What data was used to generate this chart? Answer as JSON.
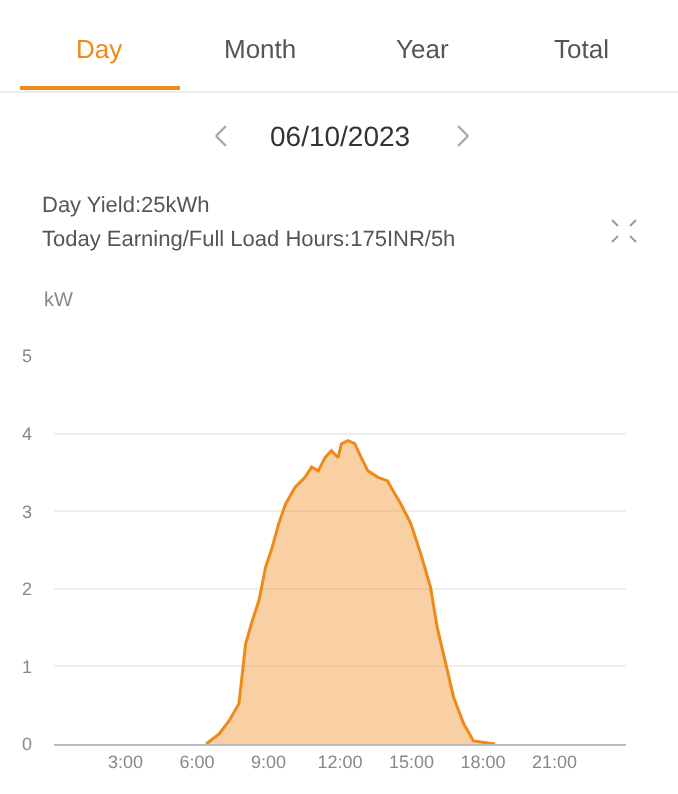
{
  "chart_data": {
    "type": "area",
    "title": "06/10/2023",
    "subtitle": "Day Yield:25kWh",
    "annotations": [
      "Day",
      "Month",
      "Year",
      "Total",
      "Today Earning/Full Load Hours:175INR/5h"
    ],
    "ylabel": "kW",
    "series": [
      {
        "color": "#ee8a1a",
        "x": [
          6.38,
          6.93,
          7.35,
          7.76,
          7.9,
          8.04,
          8.32,
          8.6,
          8.88,
          9.15,
          9.43,
          9.71,
          10.12,
          10.54,
          10.81,
          11.09,
          11.37,
          11.64,
          11.92,
          12.06,
          12.34,
          12.62,
          12.89,
          13.17,
          13.58,
          14.0,
          14.14,
          14.56,
          14.97,
          15.39,
          15.8,
          16.08,
          16.41,
          16.77,
          17.19,
          17.6,
          18.51
        ],
        "values": [
          0,
          0.13,
          0.3,
          0.52,
          0.9,
          1.29,
          1.59,
          1.85,
          2.28,
          2.53,
          2.84,
          3.09,
          3.31,
          3.44,
          3.57,
          3.52,
          3.69,
          3.78,
          3.69,
          3.87,
          3.91,
          3.87,
          3.69,
          3.52,
          3.44,
          3.39,
          3.31,
          3.09,
          2.84,
          2.45,
          2.02,
          1.5,
          1.07,
          0.6,
          0.26,
          0.04,
          0
        ]
      }
    ],
    "xlim": [
      0,
      24
    ],
    "xticks": [
      {
        "value": 3,
        "label": "3:00"
      },
      {
        "value": 6,
        "label": "6:00"
      },
      {
        "value": 9,
        "label": "9:00"
      },
      {
        "value": 12,
        "label": "12:00"
      },
      {
        "value": 15,
        "label": "15:00"
      },
      {
        "value": 18,
        "label": "18:00"
      },
      {
        "value": 21,
        "label": "21:00"
      }
    ],
    "ylim": [
      0,
      5
    ],
    "yticks": [
      0,
      1,
      2,
      3,
      4,
      5
    ],
    "grid": "y"
  }
}
